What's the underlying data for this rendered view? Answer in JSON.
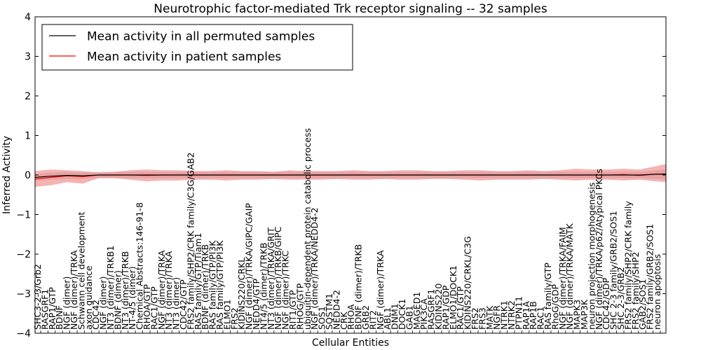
{
  "chart_data": {
    "type": "line",
    "title": "Neurotrophic factor-mediated Trk receptor signaling -- 32 samples",
    "xlabel": "Cellular Entities",
    "ylabel": "Inferred Activity",
    "ylim": [
      -4,
      4
    ],
    "xlim": [
      0,
      119
    ],
    "yticks": [
      -4,
      -3,
      -2,
      -1,
      0,
      1,
      2,
      3,
      4
    ],
    "grid": false,
    "legend_location": "top-left",
    "legend": [
      {
        "label": "Mean activity in all permuted samples",
        "color": "#000000"
      },
      {
        "label": "Mean activity in patient samples",
        "color": "#ff0000"
      }
    ],
    "categories": [
      "SHC3-2-3/Grb2",
      "RASGRF1",
      "RAP1/GTP",
      "BDNF",
      "NGF (dimer)",
      "NGF (dimer)/TRKA",
      "Schwann cell development",
      "axon guidance",
      "CDC42",
      "NGF (dimer)",
      "NT3 (dimer)/TRKB1",
      "BDNF (dimer)",
      "NT3 (dimer)/TRKB",
      "NT-4/5 (dimer)",
      "Chemical Abstracts:146-91-8",
      "RHOA/GTP",
      "RAC1/GTP",
      "NGF (dimer)/TRKA",
      "NT3 (dimer)/TRKA",
      "NT3 (dimer)",
      "CDC42/GTP",
      "FRS2 family/SHP2/CRK family/C3G/GAB2",
      "RAS family/GTP/Tiam1",
      "BDNF (dimer)/TRKB",
      "RAS family/GTP/PI3K",
      "RAS family/GTP/PI3K",
      "ELMO1",
      "FRS2",
      "KIDINS220/CRKL",
      "NGF (dimer)/TRKA/GIPC/GAIP",
      "NEDD4/GTP",
      "NT4/5 (dimer)/TRKB",
      "NT3 (dimer)/TRKA/GRIT",
      "NGF (dimer)/TRKB/GIPC",
      "NGF (dimer)/TRKC",
      "RIT1/GTP",
      "RHOG/GTP",
      "ubiquitin-dependent protein catabolic process",
      "NGF (dimer)/TRKA/NEDD4-2",
      "SOS1",
      "SQSTM1",
      "NEDD4-2",
      "CRK",
      "RHOA",
      "BDNF (dimer)/TRKB",
      "GRB2",
      "RIT2",
      "NGF (dimer)/TRKA",
      "ABL1",
      "DNM1",
      "DOCK1",
      "GAB1",
      "MAGED1",
      "PIK3CA",
      "RASGRF1",
      "KIDINS220",
      "RAP1/GDP",
      "ELMO1/DOCK1",
      "RAC1/GTP",
      "KIDINS220/CRKL/C3G",
      "FRS2",
      "FRS3",
      "MATK",
      "NGFR",
      "NTRK1",
      "NTRK2",
      "PTPN11",
      "RAP1A",
      "RAP1B",
      "RAC1",
      "RAS family/GTP",
      "RhoG/GDP",
      "NGF (dimer)/TRKA/FAIM",
      "NGF (dimer)/TRKA/MATK",
      "MAPK3",
      "MAP3K",
      "neuron projection morphogenesis",
      "NGF (dimer)/TRKA/p62/Atypical PKCs",
      "CDC42/GDP",
      "SHC 2-3 family/GRB2/SOS1",
      "SHC 2-3/GRB2",
      "FRS2 family/SHP2/CRK family",
      "FRS2 family/SHP2",
      "GAB2/SOS1",
      "FRS2 family/GRB2/SOS1",
      "neuron apoptosis"
    ],
    "displayed_tick_labels": [
      "SHC3-2-3/Grb2",
      "RASGRF1",
      "RAP1/GTP",
      "BDNF",
      "NGF (dimer)",
      "NGF (dimer)/TRKA",
      "Schwann cell development",
      "axon guidance",
      "CDC42",
      "NGF (dimer)",
      "NT3 (dimer)/TRKB1",
      "BDNF (dimer)",
      "NT3 (dimer)/TRKB",
      "NT-4/5 (dimer)",
      "Chemical Abstracts:146-91-8",
      "RHOA/GTP",
      "RAC1/GTP",
      "NGF (dimer)/TRKA",
      "NT3 (dimer)/TRKA",
      "NT3 (dimer)",
      "CDC42/GTP",
      "FRS2 family/SHP2/CRK family/C3G/GAB2",
      "RAS family/GTP/Tiam1",
      "BDNF (dimer)/TRKB",
      "RAS family/GTP/PI3K",
      "RAS family/GTP/PI3K",
      "ELMO1",
      "FRS2",
      "KIDINS220/CRKL",
      "NGF (dimer)/TRKA/GIPC/GAIP",
      "NEDD4/GTP",
      "NT4/5 (dimer)/TRKB",
      "NT3 (dimer)/TRKA/GRIT",
      "NGF (dimer)/TRKB/GIPC",
      "NGF (dimer)/TRKC",
      "RIT1/GTP",
      "RHOG/GTP",
      "ubiquitin-dependent protein catabolic process",
      "NGF (dimer)/TRKA/NEDD4-2",
      "SOS1",
      "SQSTM1",
      "NEDD4-2",
      "CRK",
      "RHOA",
      "BDNF (dimer)/TRKB",
      "GRB2",
      "RIT2",
      "NGF (dimer)/TRKA",
      "ABL1",
      "DNM1",
      "DOCK1",
      "GAB1",
      "MAGED1",
      "PIK3CA",
      "RASGRF1",
      "KIDINS220",
      "RAP1/GDP",
      "ELMO1/DOCK1",
      "RAC1/GTP",
      "KIDINS220/CRKL/C3G",
      "FRS2",
      "FRS3",
      "MATK",
      "NGFR",
      "NTRK1",
      "NTRK2",
      "PTPN11",
      "RAP1A",
      "RAP1B",
      "RAC1",
      "RAS family/GTP",
      "RhoG/GDP",
      "NGF (dimer)/TRKA/FAIM",
      "NGF (dimer)/TRKA/MATK",
      "MAPK3",
      "MAP3K",
      "neuron projection morphogenesis",
      "NGF (dimer)/TRKA/p62/Atypical PKCs",
      "CDC42/GDP",
      "SHC 2-3 family/GRB2/SOS1",
      "SHC 2-3/GRB2",
      "FRS2 family/SHP2/CRK family",
      "FRS2 family/SHP2",
      "GAB2/SOS1",
      "FRS2 family/GRB2/SOS1",
      "neuron apoptosis"
    ],
    "series": [
      {
        "name": "Mean activity in all permuted samples",
        "color": "#000000",
        "band_color": "#c8c8c8",
        "x": [
          0,
          3,
          6,
          9,
          12,
          15,
          18,
          21,
          24,
          27,
          30,
          33,
          36,
          39,
          42,
          45,
          48,
          51,
          54,
          57,
          60,
          63,
          66,
          69,
          72,
          75,
          78,
          81,
          84,
          87,
          90,
          93,
          96,
          99,
          102,
          105,
          108,
          111,
          114,
          117,
          119
        ],
        "values": [
          -0.06,
          -0.03,
          -0.01,
          -0.02,
          0.0,
          0.0,
          0.0,
          0.0,
          0.0,
          0.0,
          0.0,
          0.0,
          0.0,
          0.0,
          0.0,
          0.0,
          0.0,
          0.0,
          0.0,
          0.0,
          0.0,
          0.0,
          0.0,
          0.0,
          0.0,
          0.0,
          0.0,
          0.0,
          0.0,
          0.0,
          0.0,
          0.0,
          0.0,
          0.0,
          0.0,
          0.0,
          0.0,
          0.0,
          0.0,
          0.02,
          0.02
        ],
        "lower": [
          -0.14,
          -0.12,
          -0.1,
          -0.1,
          -0.08,
          -0.08,
          -0.08,
          -0.08,
          -0.08,
          -0.08,
          -0.08,
          -0.08,
          -0.08,
          -0.08,
          -0.08,
          -0.08,
          -0.08,
          -0.08,
          -0.08,
          -0.08,
          -0.08,
          -0.08,
          -0.08,
          -0.08,
          -0.08,
          -0.08,
          -0.08,
          -0.08,
          -0.08,
          -0.08,
          -0.08,
          -0.08,
          -0.08,
          -0.08,
          -0.08,
          -0.08,
          -0.08,
          -0.08,
          -0.08,
          -0.1,
          -0.12
        ],
        "upper": [
          0.02,
          0.06,
          0.08,
          0.06,
          0.08,
          0.08,
          0.08,
          0.08,
          0.08,
          0.08,
          0.08,
          0.08,
          0.08,
          0.08,
          0.08,
          0.08,
          0.08,
          0.08,
          0.08,
          0.08,
          0.08,
          0.08,
          0.08,
          0.08,
          0.08,
          0.08,
          0.08,
          0.08,
          0.08,
          0.08,
          0.08,
          0.08,
          0.08,
          0.08,
          0.08,
          0.08,
          0.08,
          0.08,
          0.08,
          0.12,
          0.14
        ]
      },
      {
        "name": "Mean activity in patient samples",
        "color": "#ff0000",
        "band_color": "#f08080",
        "x": [
          0,
          3,
          6,
          9,
          12,
          15,
          18,
          21,
          24,
          27,
          30,
          33,
          36,
          39,
          42,
          45,
          48,
          51,
          54,
          57,
          60,
          63,
          66,
          69,
          72,
          75,
          78,
          81,
          84,
          87,
          90,
          93,
          96,
          99,
          102,
          105,
          108,
          111,
          114,
          117,
          119
        ],
        "values": [
          -0.1,
          -0.06,
          -0.02,
          -0.04,
          0.0,
          0.0,
          0.0,
          -0.01,
          0.0,
          0.0,
          0.0,
          0.0,
          0.0,
          0.0,
          0.0,
          0.0,
          0.0,
          0.0,
          0.0,
          0.0,
          0.0,
          0.0,
          0.0,
          0.0,
          0.0,
          0.0,
          0.0,
          0.0,
          0.0,
          0.0,
          0.0,
          0.0,
          0.0,
          0.0,
          0.0,
          0.0,
          0.0,
          0.01,
          -0.01,
          0.02,
          0.03
        ],
        "lower": [
          -0.3,
          -0.26,
          -0.18,
          -0.22,
          -0.08,
          -0.08,
          -0.12,
          -0.16,
          -0.14,
          -0.14,
          -0.12,
          -0.12,
          -0.14,
          -0.12,
          -0.12,
          -0.1,
          -0.12,
          -0.12,
          -0.12,
          -0.1,
          -0.12,
          -0.12,
          -0.1,
          -0.12,
          -0.12,
          -0.1,
          -0.1,
          -0.12,
          -0.14,
          -0.12,
          -0.12,
          -0.12,
          -0.1,
          -0.12,
          -0.14,
          -0.12,
          -0.12,
          -0.14,
          -0.12,
          -0.16,
          -0.18
        ],
        "upper": [
          0.1,
          0.14,
          0.12,
          0.1,
          0.06,
          0.08,
          0.12,
          0.14,
          0.12,
          0.12,
          0.1,
          0.1,
          0.12,
          0.1,
          0.1,
          0.08,
          0.12,
          0.1,
          0.1,
          0.1,
          0.12,
          0.1,
          0.1,
          0.12,
          0.12,
          0.1,
          0.1,
          0.12,
          0.12,
          0.1,
          0.1,
          0.12,
          0.1,
          0.12,
          0.16,
          0.14,
          0.14,
          0.16,
          0.14,
          0.22,
          0.28
        ]
      }
    ]
  }
}
